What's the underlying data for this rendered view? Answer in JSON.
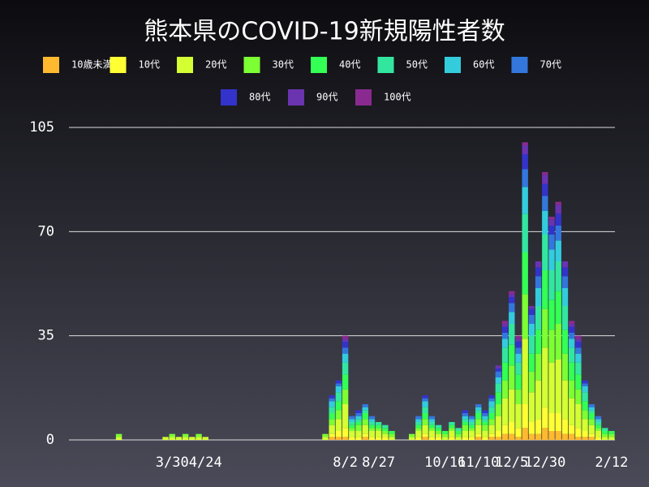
{
  "chart_data": {
    "type": "stacked-bar",
    "title": "熊本県のCOVID-19新規陽性者数",
    "categories": [
      null,
      null,
      null,
      null,
      null,
      null,
      null,
      null,
      null,
      null,
      null,
      null,
      null,
      null,
      null,
      "3/30",
      null,
      null,
      null,
      null,
      "4/24",
      null,
      null,
      null,
      null,
      null,
      null,
      null,
      null,
      null,
      null,
      null,
      null,
      null,
      null,
      null,
      null,
      null,
      null,
      null,
      null,
      "8/2",
      null,
      null,
      null,
      null,
      "8/27",
      null,
      null,
      null,
      null,
      null,
      null,
      null,
      null,
      null,
      "10/16",
      null,
      null,
      null,
      null,
      "11/10",
      null,
      null,
      null,
      null,
      "12/5",
      null,
      null,
      null,
      null,
      "12/30",
      null,
      null,
      null,
      null,
      null,
      null,
      null,
      null,
      null,
      "2/12"
    ],
    "ylim": [
      0,
      105
    ],
    "yticks": [
      0,
      35,
      70,
      105
    ],
    "grid": true,
    "series": [
      {
        "name": "10歳未満",
        "color": "#ffb92e",
        "values": [
          0,
          0,
          0,
          0,
          0,
          0,
          0,
          0,
          0,
          0,
          0,
          0,
          0,
          0,
          0,
          0,
          0,
          0,
          0,
          0,
          0,
          0,
          0,
          0,
          0,
          0,
          0,
          0,
          0,
          0,
          0,
          0,
          0,
          0,
          0,
          0,
          0,
          0,
          0,
          1,
          1,
          1,
          0,
          0,
          1,
          0,
          0,
          0,
          0,
          0,
          0,
          0,
          0,
          1,
          0,
          0,
          0,
          0,
          0,
          0,
          0,
          1,
          0,
          1,
          1,
          2,
          2,
          1,
          4,
          2,
          2,
          4,
          3,
          3,
          2,
          2,
          1,
          1,
          1,
          0,
          0,
          0
        ]
      },
      {
        "name": "10代",
        "color": "#ffff33",
        "values": [
          0,
          0,
          0,
          0,
          0,
          0,
          0,
          0,
          0,
          0,
          0,
          0,
          0,
          0,
          0,
          0,
          0,
          0,
          0,
          0,
          0,
          0,
          0,
          0,
          0,
          0,
          0,
          0,
          0,
          0,
          0,
          0,
          0,
          0,
          0,
          0,
          0,
          0,
          0,
          1,
          2,
          3,
          1,
          1,
          1,
          1,
          1,
          1,
          0,
          0,
          0,
          0,
          1,
          1,
          1,
          1,
          0,
          1,
          0,
          1,
          1,
          1,
          1,
          1,
          2,
          3,
          4,
          3,
          8,
          4,
          5,
          7,
          6,
          6,
          5,
          3,
          3,
          2,
          1,
          1,
          0,
          0
        ]
      },
      {
        "name": "20代",
        "color": "#d4ff33",
        "values": [
          0,
          0,
          0,
          0,
          0,
          0,
          0,
          1,
          0,
          0,
          0,
          0,
          0,
          0,
          1,
          1,
          1,
          1,
          1,
          1,
          1,
          0,
          0,
          0,
          0,
          0,
          0,
          0,
          0,
          0,
          0,
          0,
          0,
          0,
          0,
          0,
          0,
          0,
          1,
          3,
          4,
          8,
          2,
          2,
          3,
          2,
          2,
          1,
          1,
          0,
          0,
          1,
          2,
          3,
          2,
          1,
          1,
          2,
          1,
          2,
          2,
          3,
          2,
          3,
          5,
          9,
          11,
          8,
          22,
          10,
          13,
          20,
          17,
          18,
          13,
          9,
          8,
          4,
          3,
          2,
          1,
          1
        ]
      },
      {
        "name": "30代",
        "color": "#7cff33",
        "values": [
          0,
          0,
          0,
          0,
          0,
          0,
          0,
          1,
          0,
          0,
          0,
          0,
          0,
          0,
          0,
          1,
          0,
          1,
          0,
          1,
          0,
          0,
          0,
          0,
          0,
          0,
          0,
          0,
          0,
          0,
          0,
          0,
          0,
          0,
          0,
          0,
          0,
          0,
          1,
          2,
          3,
          5,
          1,
          2,
          2,
          1,
          1,
          1,
          1,
          0,
          0,
          1,
          1,
          2,
          1,
          1,
          1,
          1,
          1,
          2,
          1,
          2,
          2,
          2,
          4,
          6,
          8,
          5,
          15,
          7,
          9,
          13,
          11,
          12,
          9,
          6,
          5,
          3,
          2,
          1,
          1,
          1
        ]
      },
      {
        "name": "40代",
        "color": "#33ff55",
        "values": [
          0,
          0,
          0,
          0,
          0,
          0,
          0,
          0,
          0,
          0,
          0,
          0,
          0,
          0,
          0,
          0,
          0,
          0,
          0,
          0,
          0,
          0,
          0,
          0,
          0,
          0,
          0,
          0,
          0,
          0,
          0,
          0,
          0,
          0,
          0,
          0,
          0,
          0,
          0,
          2,
          3,
          5,
          1,
          1,
          2,
          1,
          1,
          1,
          1,
          0,
          0,
          0,
          1,
          2,
          1,
          1,
          1,
          1,
          1,
          1,
          1,
          2,
          1,
          2,
          4,
          6,
          7,
          5,
          14,
          6,
          8,
          13,
          10,
          11,
          8,
          6,
          5,
          3,
          2,
          1,
          1,
          1
        ]
      },
      {
        "name": "50代",
        "color": "#33e6a0",
        "values": [
          0,
          0,
          0,
          0,
          0,
          0,
          0,
          0,
          0,
          0,
          0,
          0,
          0,
          0,
          0,
          0,
          0,
          0,
          0,
          0,
          0,
          0,
          0,
          0,
          0,
          0,
          0,
          0,
          0,
          0,
          0,
          0,
          0,
          0,
          0,
          0,
          0,
          0,
          0,
          2,
          3,
          4,
          1,
          1,
          1,
          1,
          1,
          1,
          0,
          0,
          0,
          0,
          1,
          2,
          1,
          1,
          0,
          1,
          1,
          1,
          1,
          1,
          1,
          2,
          3,
          5,
          7,
          4,
          13,
          6,
          8,
          12,
          10,
          10,
          8,
          5,
          4,
          3,
          1,
          1,
          1,
          0
        ]
      },
      {
        "name": "60代",
        "color": "#33ccdd",
        "values": [
          0,
          0,
          0,
          0,
          0,
          0,
          0,
          0,
          0,
          0,
          0,
          0,
          0,
          0,
          0,
          0,
          0,
          0,
          0,
          0,
          0,
          0,
          0,
          0,
          0,
          0,
          0,
          0,
          0,
          0,
          0,
          0,
          0,
          0,
          0,
          0,
          0,
          0,
          0,
          2,
          2,
          3,
          1,
          1,
          1,
          1,
          0,
          0,
          0,
          0,
          0,
          0,
          1,
          2,
          1,
          0,
          0,
          0,
          0,
          1,
          1,
          1,
          1,
          2,
          2,
          3,
          4,
          3,
          9,
          4,
          6,
          8,
          7,
          7,
          6,
          3,
          3,
          2,
          1,
          1,
          0,
          0
        ]
      },
      {
        "name": "70代",
        "color": "#3377dd",
        "values": [
          0,
          0,
          0,
          0,
          0,
          0,
          0,
          0,
          0,
          0,
          0,
          0,
          0,
          0,
          0,
          0,
          0,
          0,
          0,
          0,
          0,
          0,
          0,
          0,
          0,
          0,
          0,
          0,
          0,
          0,
          0,
          0,
          0,
          0,
          0,
          0,
          0,
          0,
          0,
          1,
          1,
          2,
          1,
          1,
          1,
          1,
          0,
          0,
          0,
          0,
          0,
          0,
          1,
          1,
          1,
          0,
          0,
          0,
          0,
          1,
          1,
          1,
          1,
          1,
          2,
          2,
          3,
          2,
          6,
          3,
          4,
          5,
          5,
          5,
          4,
          2,
          2,
          1,
          1,
          1,
          0,
          0
        ]
      },
      {
        "name": "80代",
        "color": "#3333cc",
        "values": [
          0,
          0,
          0,
          0,
          0,
          0,
          0,
          0,
          0,
          0,
          0,
          0,
          0,
          0,
          0,
          0,
          0,
          0,
          0,
          0,
          0,
          0,
          0,
          0,
          0,
          0,
          0,
          0,
          0,
          0,
          0,
          0,
          0,
          0,
          0,
          0,
          0,
          0,
          0,
          1,
          1,
          2,
          0,
          1,
          0,
          0,
          0,
          0,
          0,
          0,
          0,
          0,
          0,
          1,
          0,
          0,
          0,
          0,
          0,
          1,
          0,
          0,
          1,
          1,
          1,
          2,
          2,
          2,
          5,
          2,
          3,
          4,
          3,
          4,
          3,
          2,
          2,
          1,
          0,
          0,
          0,
          0
        ]
      },
      {
        "name": "90代",
        "color": "#6a33b0",
        "values": [
          0,
          0,
          0,
          0,
          0,
          0,
          0,
          0,
          0,
          0,
          0,
          0,
          0,
          0,
          0,
          0,
          0,
          0,
          0,
          0,
          0,
          0,
          0,
          0,
          0,
          0,
          0,
          0,
          0,
          0,
          0,
          0,
          0,
          0,
          0,
          0,
          0,
          0,
          0,
          0,
          0,
          1,
          0,
          0,
          0,
          0,
          0,
          0,
          0,
          0,
          0,
          0,
          0,
          0,
          0,
          0,
          0,
          0,
          0,
          0,
          0,
          0,
          0,
          0,
          1,
          1,
          1,
          1,
          3,
          1,
          2,
          3,
          2,
          3,
          2,
          1,
          1,
          0,
          0,
          0,
          0,
          0
        ]
      },
      {
        "name": "100代",
        "color": "#8a2a90",
        "values": [
          0,
          0,
          0,
          0,
          0,
          0,
          0,
          0,
          0,
          0,
          0,
          0,
          0,
          0,
          0,
          0,
          0,
          0,
          0,
          0,
          0,
          0,
          0,
          0,
          0,
          0,
          0,
          0,
          0,
          0,
          0,
          0,
          0,
          0,
          0,
          0,
          0,
          0,
          0,
          0,
          0,
          1,
          0,
          0,
          0,
          0,
          0,
          0,
          0,
          0,
          0,
          0,
          0,
          0,
          0,
          0,
          0,
          0,
          0,
          0,
          0,
          0,
          0,
          0,
          0,
          1,
          1,
          1,
          1,
          0,
          0,
          1,
          1,
          1,
          0,
          1,
          1,
          0,
          0,
          0,
          0,
          0
        ]
      }
    ]
  }
}
